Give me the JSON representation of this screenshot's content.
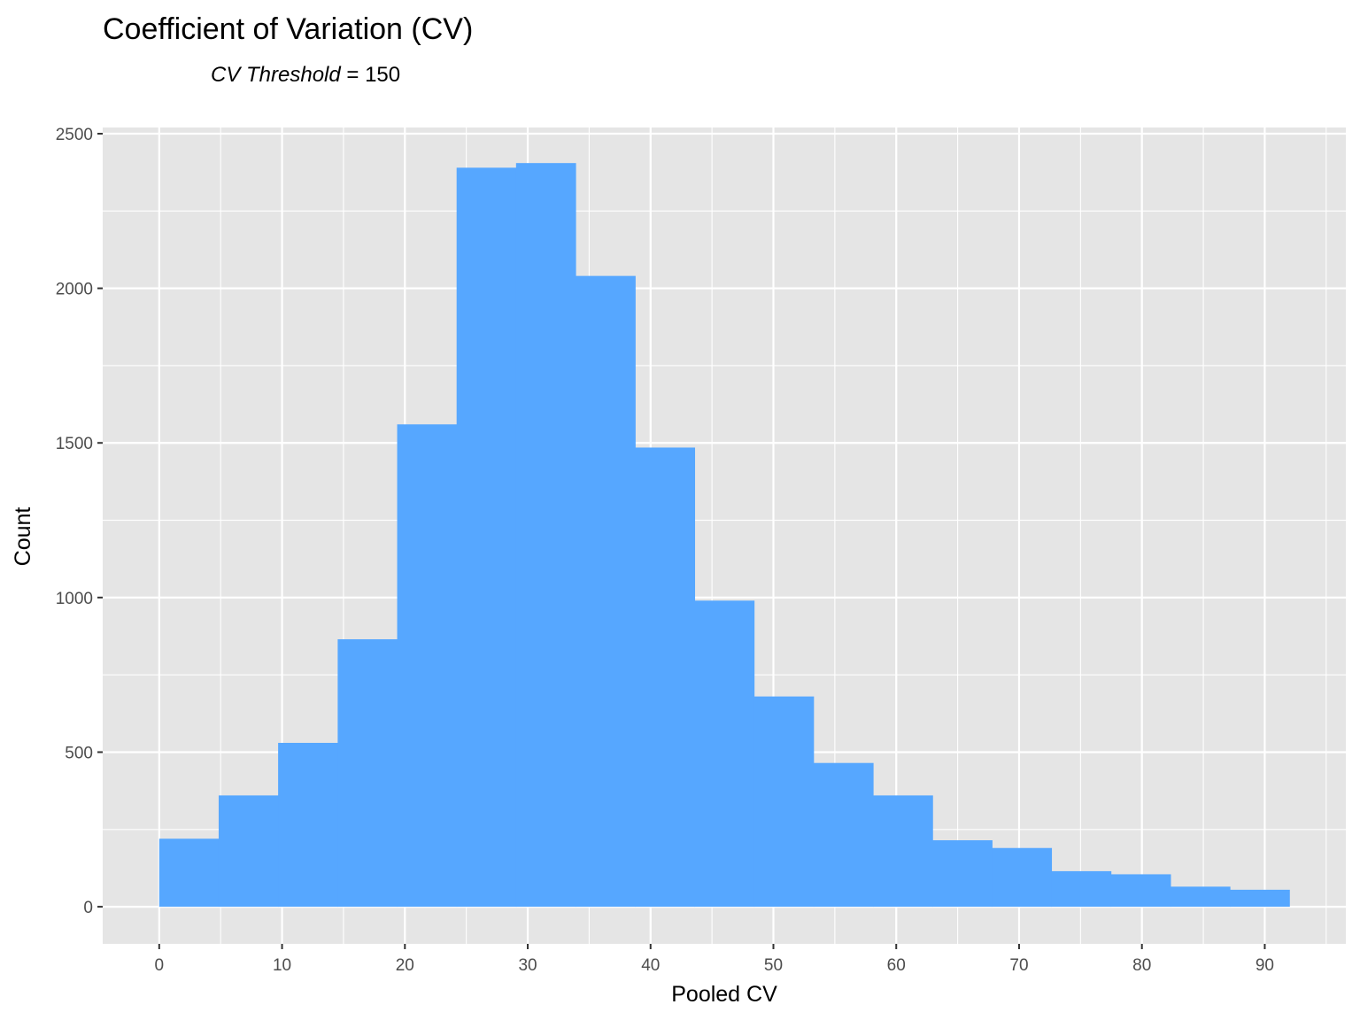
{
  "chart_data": {
    "type": "bar",
    "title": "Coefficient of Variation (CV)",
    "subtitle_italic": "CV Threshold",
    "subtitle_rest": " = 150",
    "xlabel": "Pooled CV",
    "ylabel": "Count",
    "xlim": [
      -4.6,
      96.6
    ],
    "ylim": [
      -120,
      2520
    ],
    "x_ticks": [
      0,
      10,
      20,
      30,
      40,
      50,
      60,
      70,
      80,
      90
    ],
    "x_tick_labels": [
      "0",
      "10",
      "20",
      "30",
      "40",
      "50",
      "60",
      "70",
      "80",
      "90"
    ],
    "y_ticks": [
      0,
      500,
      1000,
      1500,
      2000,
      2500
    ],
    "y_tick_labels": [
      "0",
      "500",
      "1000",
      "1500",
      "2000",
      "2500"
    ],
    "bin_edges": [
      0,
      4.84,
      9.68,
      14.53,
      19.37,
      24.21,
      29.05,
      33.89,
      38.74,
      43.58,
      48.42,
      53.26,
      58.11,
      62.95,
      67.79,
      72.63,
      77.47,
      82.32,
      87.16,
      92.0
    ],
    "values": [
      220,
      360,
      530,
      865,
      1560,
      2390,
      2405,
      2040,
      1485,
      990,
      680,
      465,
      360,
      215,
      190,
      115,
      105,
      65,
      55
    ],
    "bar_color": "#56A7FF",
    "panel_color": "#E5E5E5",
    "grid": true
  }
}
